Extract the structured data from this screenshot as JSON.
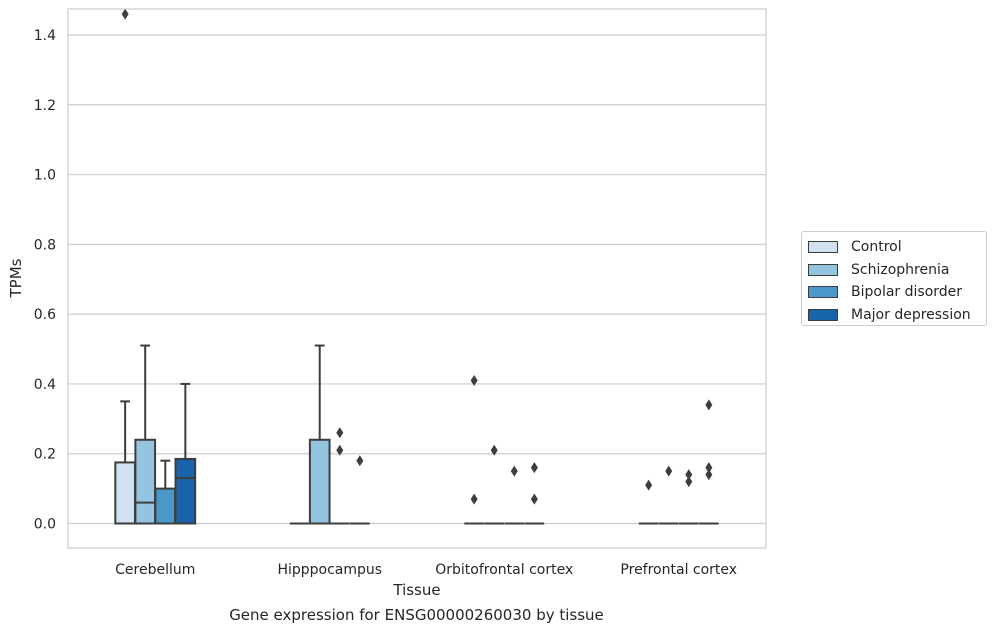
{
  "chart_data": {
    "type": "box",
    "caption": "Gene expression for ENSG00000260030 by tissue",
    "xlabel": "Tissue",
    "ylabel": "TPMs",
    "categories": [
      "Cerebellum",
      "Hipppocampus",
      "Orbitofrontal cortex",
      "Prefrontal cortex"
    ],
    "ylim": [
      -0.07,
      1.54
    ],
    "yticks": [
      0.0,
      0.2,
      0.4,
      0.6,
      0.8,
      1.0,
      1.2,
      1.4
    ],
    "ytick_labels": [
      "0.0",
      "0.2",
      "0.4",
      "0.6",
      "0.8",
      "1.0",
      "1.2",
      "1.4"
    ],
    "grid": true,
    "legend": {
      "position": "right",
      "entries": [
        "Control",
        "Schizophrenia",
        "Bipolar disorder",
        "Major depression"
      ]
    },
    "series": [
      {
        "name": "Control",
        "color": "#d0e1f2",
        "boxes": [
          {
            "q1": 0,
            "median": 0,
            "q3": 0.175,
            "whisker_low": 0,
            "whisker_high": 0.35,
            "outliers": [
              1.46
            ]
          },
          {
            "q1": 0,
            "median": 0,
            "q3": 0,
            "whisker_low": 0,
            "whisker_high": 0,
            "outliers": []
          },
          {
            "q1": 0,
            "median": 0,
            "q3": 0,
            "whisker_low": 0,
            "whisker_high": 0,
            "outliers": [
              0.41,
              0.07
            ]
          },
          {
            "q1": 0,
            "median": 0,
            "q3": 0,
            "whisker_low": 0,
            "whisker_high": 0,
            "outliers": [
              0.11
            ]
          }
        ]
      },
      {
        "name": "Schizophrenia",
        "color": "#94c4df",
        "boxes": [
          {
            "q1": 0,
            "median": 0.06,
            "q3": 0.24,
            "whisker_low": 0,
            "whisker_high": 0.51,
            "outliers": []
          },
          {
            "q1": 0,
            "median": 0,
            "q3": 0.24,
            "whisker_low": 0,
            "whisker_high": 0.51,
            "outliers": []
          },
          {
            "q1": 0,
            "median": 0,
            "q3": 0,
            "whisker_low": 0,
            "whisker_high": 0,
            "outliers": [
              0.21
            ]
          },
          {
            "q1": 0,
            "median": 0,
            "q3": 0,
            "whisker_low": 0,
            "whisker_high": 0,
            "outliers": [
              0.15
            ]
          }
        ]
      },
      {
        "name": "Bipolar disorder",
        "color": "#4a98c9",
        "boxes": [
          {
            "q1": 0,
            "median": 0,
            "q3": 0.1,
            "whisker_low": 0,
            "whisker_high": 0.18,
            "outliers": []
          },
          {
            "q1": 0,
            "median": 0,
            "q3": 0,
            "whisker_low": 0,
            "whisker_high": 0,
            "outliers": [
              0.26,
              0.21
            ]
          },
          {
            "q1": 0,
            "median": 0,
            "q3": 0,
            "whisker_low": 0,
            "whisker_high": 0,
            "outliers": [
              0.15
            ]
          },
          {
            "q1": 0,
            "median": 0,
            "q3": 0,
            "whisker_low": 0,
            "whisker_high": 0,
            "outliers": [
              0.14,
              0.12
            ]
          }
        ]
      },
      {
        "name": "Major depression",
        "color": "#1764ab",
        "boxes": [
          {
            "q1": 0,
            "median": 0.13,
            "q3": 0.185,
            "whisker_low": 0,
            "whisker_high": 0.4,
            "outliers": []
          },
          {
            "q1": 0,
            "median": 0,
            "q3": 0,
            "whisker_low": 0,
            "whisker_high": 0,
            "outliers": [
              0.18
            ]
          },
          {
            "q1": 0,
            "median": 0,
            "q3": 0,
            "whisker_low": 0,
            "whisker_high": 0,
            "outliers": [
              0.16,
              0.07
            ]
          },
          {
            "q1": 0,
            "median": 0,
            "q3": 0,
            "whisker_low": 0,
            "whisker_high": 0,
            "outliers": [
              0.34,
              0.16,
              0.14
            ]
          }
        ]
      }
    ]
  }
}
